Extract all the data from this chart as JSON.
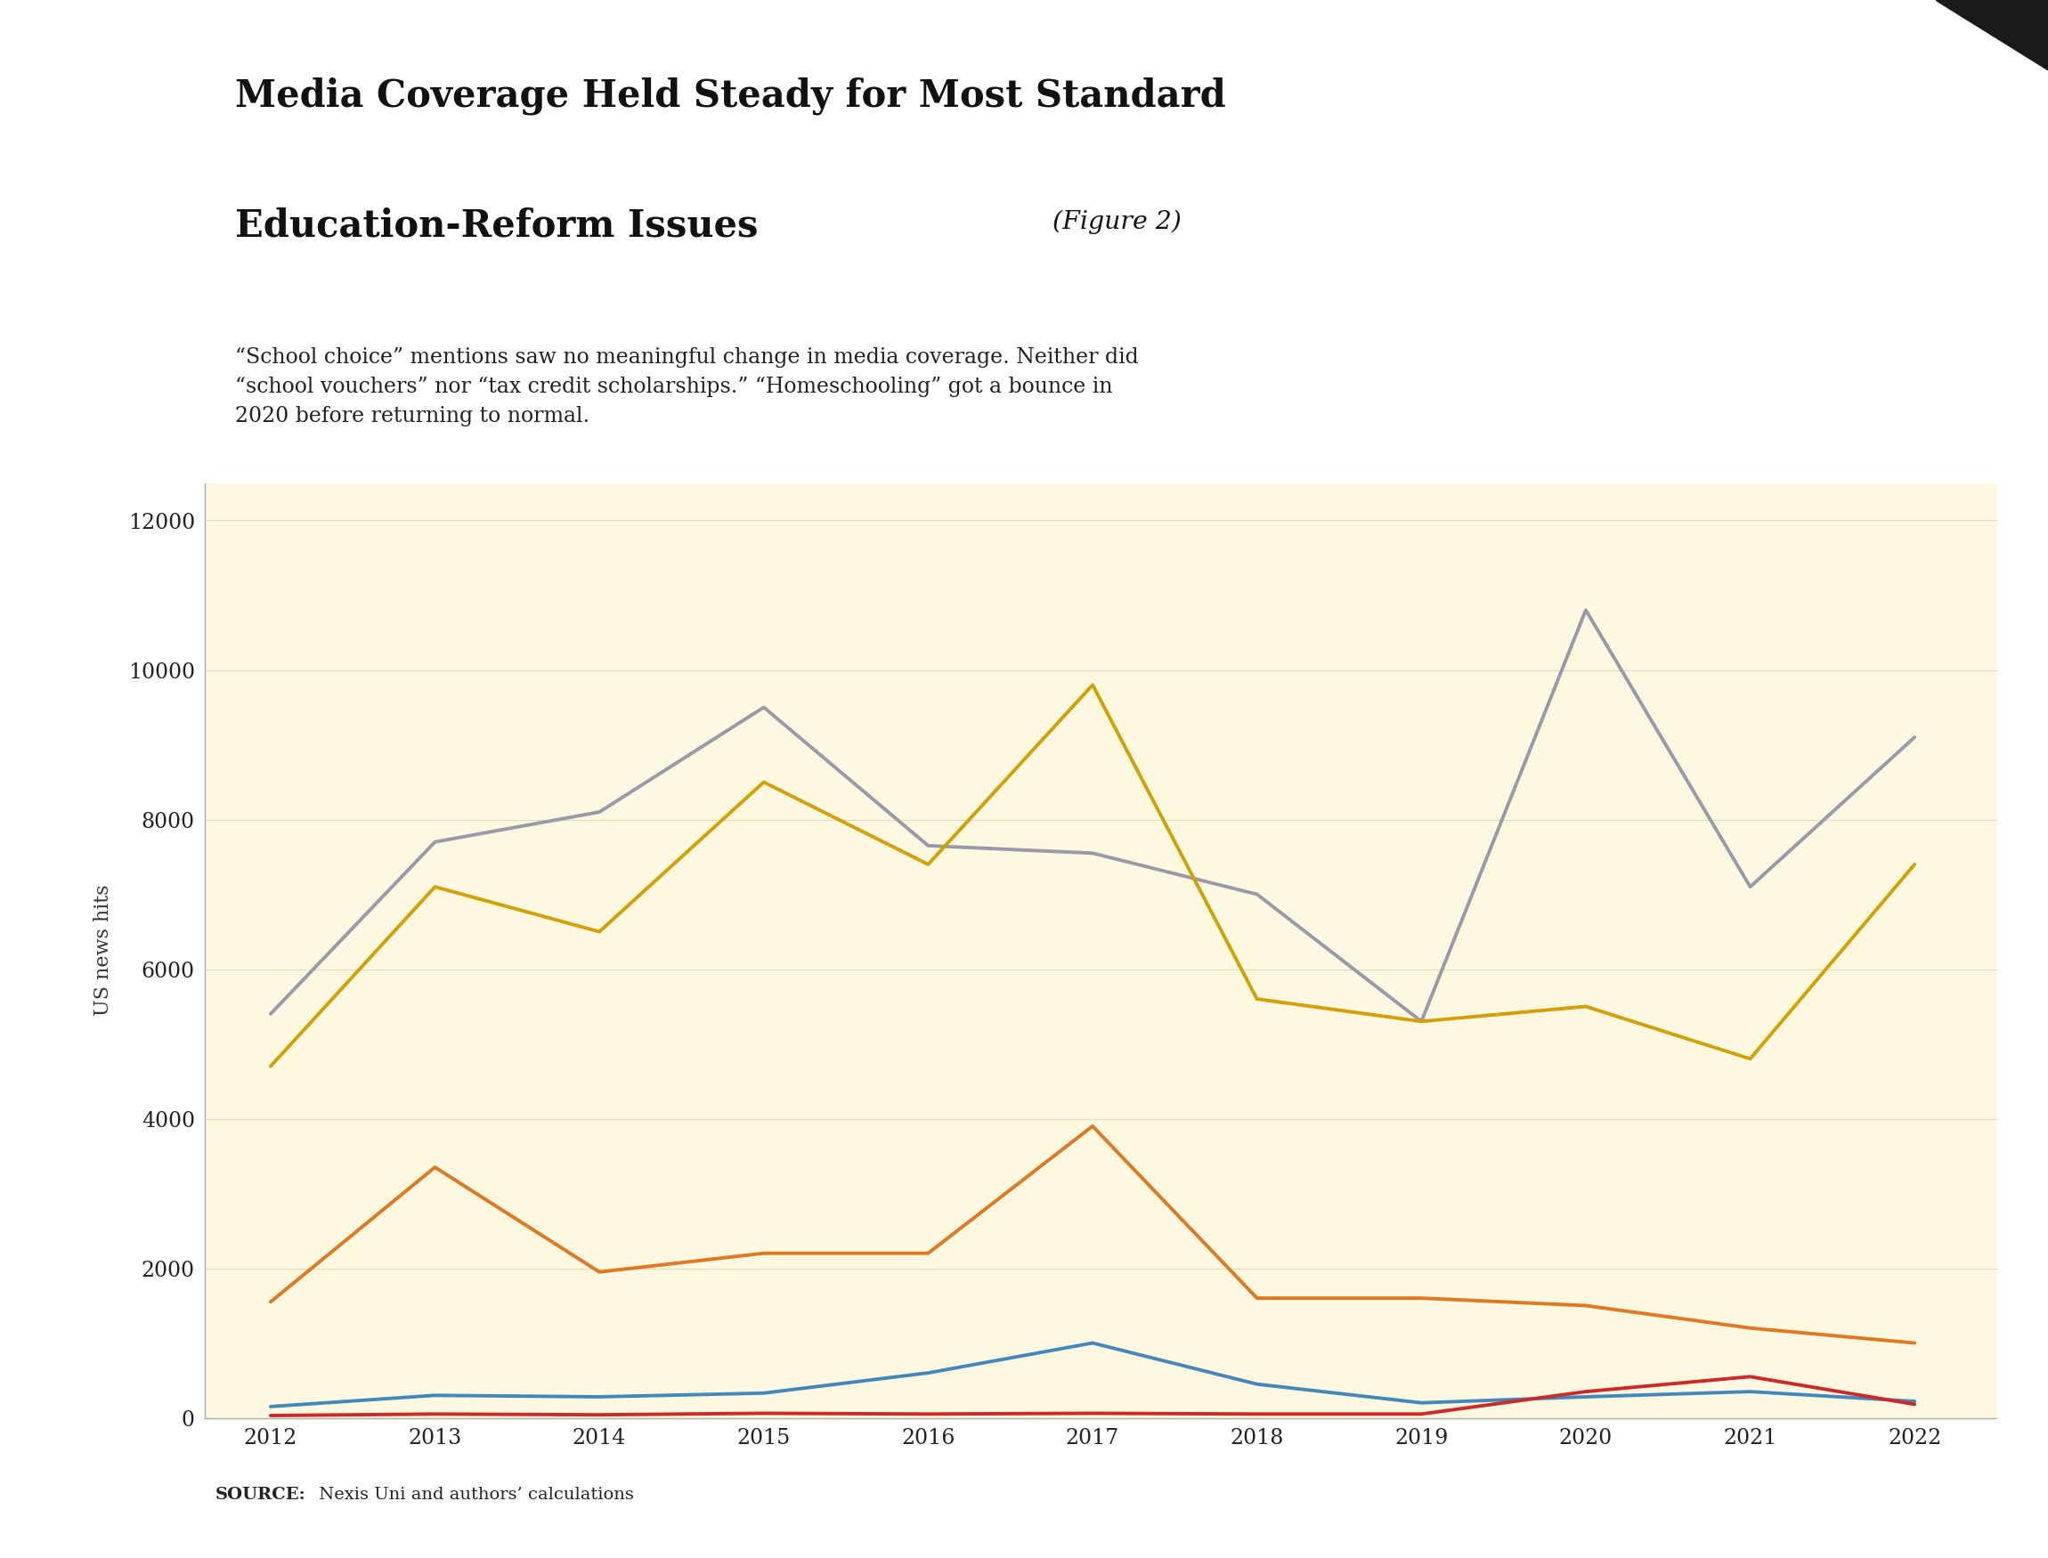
{
  "title_line1": "Media Coverage Held Steady for Most Standard",
  "title_line2": "Education-Reform Issues",
  "title_fig_label": " (Figure 2)",
  "subtitle": "“School choice” mentions saw no meaningful change in media coverage. Neither did\n“school vouchers” nor “tax credit scholarships.” “Homeschooling” got a bounce in\n2020 before returning to normal.",
  "source_bold": "SOURCE:",
  "source_rest": " Nexis Uni and authors’ calculations",
  "years": [
    2012,
    2013,
    2014,
    2015,
    2016,
    2017,
    2018,
    2019,
    2020,
    2021,
    2022
  ],
  "series": {
    "Learning pods": {
      "values": [
        30,
        50,
        40,
        60,
        50,
        60,
        50,
        50,
        350,
        550,
        180
      ],
      "color": "#cc2929",
      "linewidth": 2.8
    },
    "School vouchers": {
      "values": [
        1550,
        3350,
        1950,
        2200,
        2200,
        3900,
        1600,
        1600,
        1500,
        1200,
        1000
      ],
      "color": "#e07820",
      "linewidth": 2.8
    },
    "Homeschooling": {
      "values": [
        5400,
        7700,
        8100,
        9500,
        7650,
        7550,
        7000,
        5300,
        10800,
        7100,
        9100
      ],
      "color": "#9999aa",
      "linewidth": 2.8
    },
    "School choice": {
      "values": [
        4700,
        7100,
        6500,
        8500,
        7400,
        9800,
        5600,
        5300,
        5500,
        4800,
        7400
      ],
      "color": "#d4a000",
      "linewidth": 2.8
    },
    "Tax credit scholarships": {
      "values": [
        150,
        300,
        280,
        330,
        600,
        1000,
        450,
        200,
        280,
        350,
        220
      ],
      "color": "#4488bb",
      "linewidth": 2.8
    }
  },
  "ylim": [
    0,
    12500
  ],
  "yticks": [
    0,
    2000,
    4000,
    6000,
    8000,
    10000,
    12000
  ],
  "ylabel": "US news hits",
  "header_bg": "#cce8e5",
  "chart_bg": "#fdf8e0",
  "outer_bg": "#ffffff",
  "title_fontsize": 30,
  "subtitle_fontsize": 17,
  "source_fontsize": 14,
  "axis_label_fontsize": 16,
  "legend_fontsize": 16,
  "tick_fontsize": 17
}
